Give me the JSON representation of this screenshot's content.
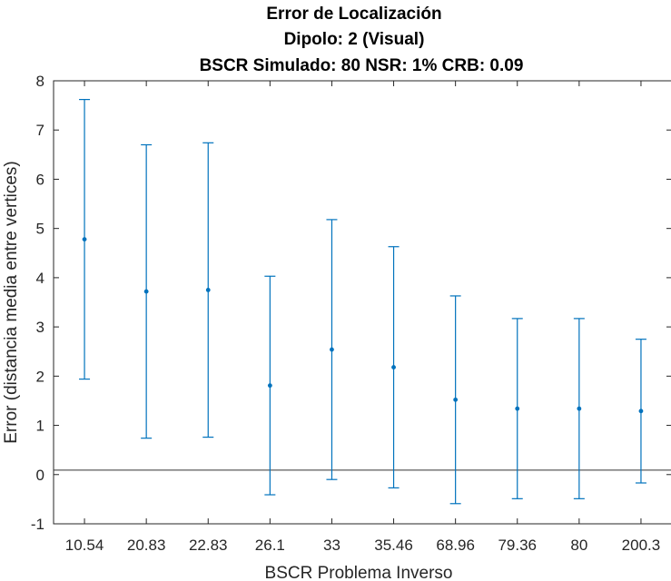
{
  "chart_data": {
    "type": "errorbar",
    "title_lines": [
      "Error de Localización",
      "Dipolo: 2 (Visual)",
      "BSCR Simulado: 80 NSR: 1% CRB: 0.09"
    ],
    "xlabel": "BSCR Problema Inverso",
    "ylabel": "Error (distancia media entre vertices)",
    "categories": [
      "10.54",
      "20.83",
      "22.83",
      "26.1",
      "33",
      "35.46",
      "68.96",
      "79.36",
      "80",
      "200.3"
    ],
    "series": [
      {
        "mean": [
          4.78,
          3.72,
          3.75,
          1.81,
          2.54,
          2.18,
          1.52,
          1.34,
          1.34,
          1.29
        ],
        "lower": [
          1.94,
          0.74,
          0.76,
          -0.41,
          -0.1,
          -0.27,
          -0.59,
          -0.49,
          -0.49,
          -0.17
        ],
        "upper": [
          7.62,
          6.7,
          6.74,
          4.03,
          5.18,
          4.63,
          3.63,
          3.17,
          3.17,
          2.75
        ]
      }
    ],
    "reference_line": 0.09,
    "ylim": [
      -1,
      8
    ],
    "yticks": [
      "-1",
      "0",
      "1",
      "2",
      "3",
      "4",
      "5",
      "6",
      "7",
      "8"
    ],
    "grid": false,
    "colors": {
      "series": "#0072BD",
      "reference": "#333333",
      "axes": "#262626"
    }
  }
}
